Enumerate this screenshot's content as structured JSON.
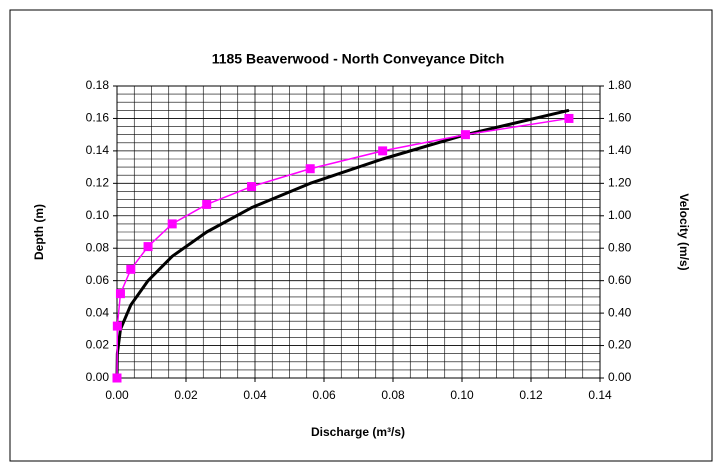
{
  "chart_data": {
    "type": "line",
    "title": "1185 Beaverwood  - North Conveyance Ditch",
    "xlabel": "Discharge (m³/s)",
    "ylabel": "Depth  (m)",
    "y2label": "Velocity (m/s)",
    "x": [
      0,
      0.0001,
      0.001,
      0.004,
      0.009,
      0.016,
      0.026,
      0.039,
      0.056,
      0.077,
      0.101,
      0.131
    ],
    "series": [
      {
        "name": "Depth",
        "color": "#000000",
        "axis": "y",
        "marker": false,
        "values": [
          0,
          0.015,
          0.03,
          0.045,
          0.06,
          0.075,
          0.09,
          0.105,
          0.12,
          0.135,
          0.15,
          0.165
        ]
      },
      {
        "name": "Velocity",
        "color": "#ff00ff",
        "axis": "y2",
        "marker": true,
        "values": [
          0,
          0.32,
          0.52,
          0.67,
          0.81,
          0.95,
          1.07,
          1.18,
          1.29,
          1.4,
          1.5,
          1.6
        ]
      }
    ],
    "xlim": [
      0,
      0.14
    ],
    "xticks": [
      {
        "value": 0,
        "label": "0.00"
      },
      {
        "value": 0.02,
        "label": "0.02"
      },
      {
        "value": 0.04,
        "label": "0.04"
      },
      {
        "value": 0.06,
        "label": "0.06"
      },
      {
        "value": 0.08,
        "label": "0.08"
      },
      {
        "value": 0.1,
        "label": "0.10"
      },
      {
        "value": 0.12,
        "label": "0.12"
      },
      {
        "value": 0.14,
        "label": "0.14"
      }
    ],
    "ylim": [
      0,
      0.18
    ],
    "yticks": [
      {
        "value": 0,
        "label": "0.00"
      },
      {
        "value": 0.02,
        "label": "0.02"
      },
      {
        "value": 0.04,
        "label": "0.04"
      },
      {
        "value": 0.06,
        "label": "0.06"
      },
      {
        "value": 0.08,
        "label": "0.08"
      },
      {
        "value": 0.1,
        "label": "0.10"
      },
      {
        "value": 0.12,
        "label": "0.12"
      },
      {
        "value": 0.14,
        "label": "0.14"
      },
      {
        "value": 0.16,
        "label": "0.16"
      },
      {
        "value": 0.18,
        "label": "0.18"
      }
    ],
    "y2lim": [
      0,
      1.8
    ],
    "y2ticks": [
      {
        "value": 0,
        "label": "0.00"
      },
      {
        "value": 0.2,
        "label": "0.20"
      },
      {
        "value": 0.4,
        "label": "0.40"
      },
      {
        "value": 0.6,
        "label": "0.60"
      },
      {
        "value": 0.8,
        "label": "0.80"
      },
      {
        "value": 1.0,
        "label": "1.00"
      },
      {
        "value": 1.2,
        "label": "1.20"
      },
      {
        "value": 1.4,
        "label": "1.40"
      },
      {
        "value": 1.6,
        "label": "1.60"
      },
      {
        "value": 1.8,
        "label": "1.80"
      }
    ],
    "xminorticks": [
      0.005,
      0.01,
      0.015,
      0.025,
      0.03,
      0.035,
      0.045,
      0.05,
      0.055,
      0.065,
      0.07,
      0.075,
      0.085,
      0.09,
      0.095,
      0.105,
      0.11,
      0.115,
      0.125,
      0.13,
      0.135
    ],
    "yminorticks": [
      0.005,
      0.01,
      0.015,
      0.025,
      0.03,
      0.035,
      0.045,
      0.05,
      0.055,
      0.065,
      0.07,
      0.075,
      0.085,
      0.09,
      0.095,
      0.105,
      0.11,
      0.115,
      0.125,
      0.13,
      0.135,
      0.145,
      0.15,
      0.155,
      0.165,
      0.17,
      0.175
    ],
    "grid": true
  }
}
